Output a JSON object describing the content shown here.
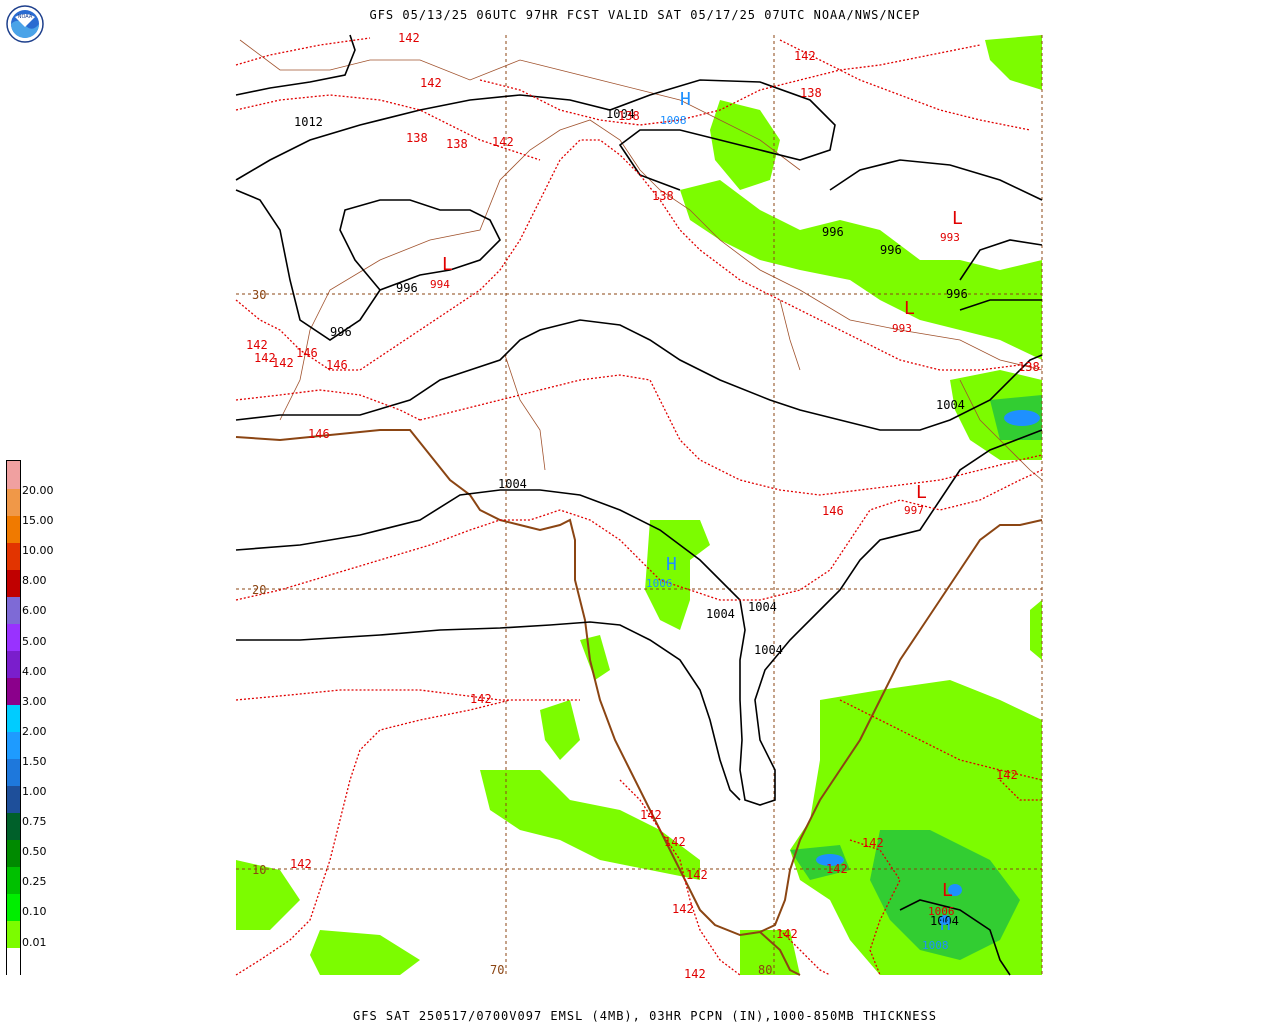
{
  "header": {
    "title": "GFS 05/13/25 06UTC 97HR FCST VALID SAT 05/17/25 07UTC NOAA/NWS/NCEP"
  },
  "footer": {
    "text": "GFS SAT 250517/0700V097 EMSL (4MB), 03HR PCPN (IN),1000-850MB THICKNESS"
  },
  "logo": {
    "text": "NOAA",
    "icon": "noaa-logo-icon"
  },
  "colors": {
    "isobar": "#000000",
    "thickness": "#e00000",
    "coastline": "#8b4513",
    "border": "#a0522d",
    "grid": "#8b4513",
    "pressure_high": "#1e90ff",
    "pressure_low": "#e00000",
    "precip_light": "#7cfc00",
    "precip_med": "#32cd32",
    "precip_heavy": "#1e90ff"
  },
  "legend": {
    "labels": [
      "20.00",
      "15.00",
      "10.00",
      "8.00",
      "6.00",
      "5.00",
      "4.00",
      "3.00",
      "2.00",
      "1.50",
      "1.00",
      "0.75",
      "0.50",
      "0.25",
      "0.10",
      "0.01"
    ],
    "colors": [
      "#ffffff",
      "#7cfc00",
      "#00ee00",
      "#00c000",
      "#008a00",
      "#00602a",
      "#1e4f9a",
      "#1e78dc",
      "#1e9bff",
      "#00ccff",
      "#8b008b",
      "#7a1ecc",
      "#9932ff",
      "#7e6ad6",
      "#c00000",
      "#e23400",
      "#f07a00",
      "#f09848",
      "#f0a0a0"
    ]
  },
  "grid_labels": {
    "lat_30": "30",
    "lat_20": "20",
    "lat_10": "10",
    "lon_70": "70",
    "lon_80": "80"
  },
  "isobar_labels": [
    {
      "text": "1012"
    },
    {
      "text": "1004"
    },
    {
      "text": "996"
    },
    {
      "text": "996"
    },
    {
      "text": "996"
    },
    {
      "text": "996"
    },
    {
      "text": "996"
    },
    {
      "text": "1004"
    },
    {
      "text": "1004"
    },
    {
      "text": "1004"
    },
    {
      "text": "1004"
    },
    {
      "text": "1004"
    },
    {
      "text": "1004"
    }
  ],
  "thickness_labels": [
    {
      "text": "142"
    },
    {
      "text": "142"
    },
    {
      "text": "138"
    },
    {
      "text": "138"
    },
    {
      "text": "142"
    },
    {
      "text": "138"
    },
    {
      "text": "138"
    },
    {
      "text": "142"
    },
    {
      "text": "138"
    },
    {
      "text": "142"
    },
    {
      "text": "142"
    },
    {
      "text": "142"
    },
    {
      "text": "146"
    },
    {
      "text": "146"
    },
    {
      "text": "146"
    },
    {
      "text": "146"
    },
    {
      "text": "138"
    },
    {
      "text": "142"
    },
    {
      "text": "142"
    },
    {
      "text": "142"
    },
    {
      "text": "142"
    },
    {
      "text": "142"
    },
    {
      "text": "142"
    },
    {
      "text": "142"
    },
    {
      "text": "142"
    },
    {
      "text": "142"
    },
    {
      "text": "142"
    },
    {
      "text": "142"
    }
  ],
  "pressure_centers": [
    {
      "symbol": "H",
      "value": "1008",
      "kind": "high"
    },
    {
      "symbol": "L",
      "value": "994",
      "kind": "low"
    },
    {
      "symbol": "L",
      "value": "993",
      "kind": "low"
    },
    {
      "symbol": "L",
      "value": "993",
      "kind": "low"
    },
    {
      "symbol": "L",
      "value": "997",
      "kind": "low"
    },
    {
      "symbol": "H",
      "value": "1006",
      "kind": "high"
    },
    {
      "symbol": "L",
      "value": "1006",
      "kind": "low"
    },
    {
      "symbol": "H",
      "value": "1008",
      "kind": "high"
    }
  ]
}
